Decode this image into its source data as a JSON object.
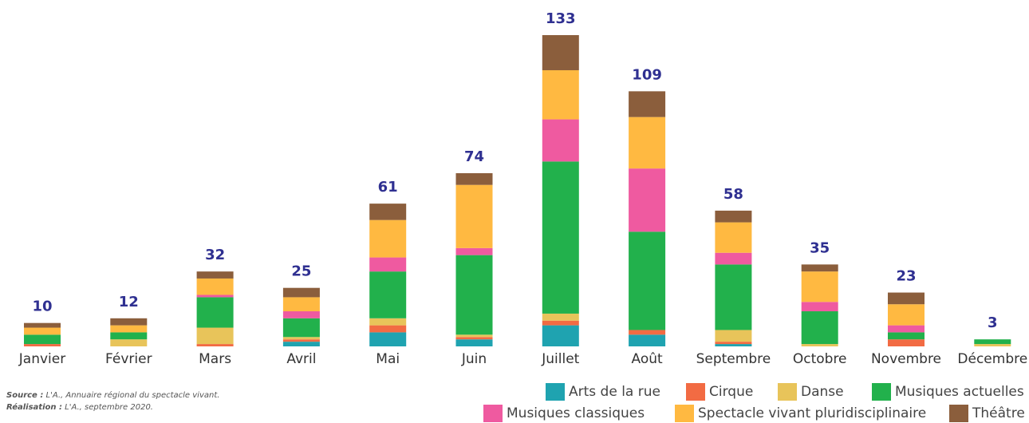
{
  "chart_data": {
    "type": "stacked_bar",
    "categories": [
      "Janvier",
      "Février",
      "Mars",
      "Avril",
      "Mai",
      "Juin",
      "Juillet",
      "Août",
      "Septembre",
      "Octobre",
      "Novembre",
      "Décembre"
    ],
    "totals": [
      10,
      12,
      32,
      25,
      61,
      74,
      133,
      109,
      58,
      35,
      23,
      3
    ],
    "ylim": [
      0,
      133
    ],
    "series": [
      {
        "name": "Arts de la rue",
        "color": "#1fa3b0",
        "values": [
          0,
          0,
          0,
          2,
          6,
          3,
          9,
          5,
          1,
          0,
          0,
          0
        ]
      },
      {
        "name": "Cirque",
        "color": "#f26b43",
        "values": [
          1,
          0,
          1,
          1,
          3,
          1,
          2,
          2,
          1,
          0,
          3,
          0
        ]
      },
      {
        "name": "Danse",
        "color": "#e8c45a",
        "values": [
          0,
          3,
          7,
          1,
          3,
          1,
          3,
          0,
          5,
          1,
          0,
          1
        ]
      },
      {
        "name": "Musiques actuelles",
        "color": "#22b14c",
        "values": [
          4,
          3,
          13,
          8,
          20,
          34,
          65,
          42,
          28,
          14,
          3,
          2
        ]
      },
      {
        "name": "Musiques classiques",
        "color": "#ef5aa0",
        "values": [
          0,
          0,
          1,
          3,
          6,
          3,
          18,
          27,
          5,
          4,
          3,
          0
        ]
      },
      {
        "name": "Spectacle vivant pluridisciplinaire",
        "color": "#ffb941",
        "values": [
          3,
          3,
          7,
          6,
          16,
          27,
          21,
          22,
          13,
          13,
          9,
          0
        ]
      },
      {
        "name": "Théâtre",
        "color": "#8b5e3c",
        "values": [
          2,
          3,
          3,
          4,
          7,
          5,
          15,
          11,
          5,
          3,
          5,
          0
        ]
      }
    ],
    "source": {
      "label": "Source :",
      "text": "L'A., Annuaire régional du spectacle vivant."
    },
    "credit": {
      "label": "Réalisation :",
      "text": "L'A., septembre 2020."
    }
  }
}
